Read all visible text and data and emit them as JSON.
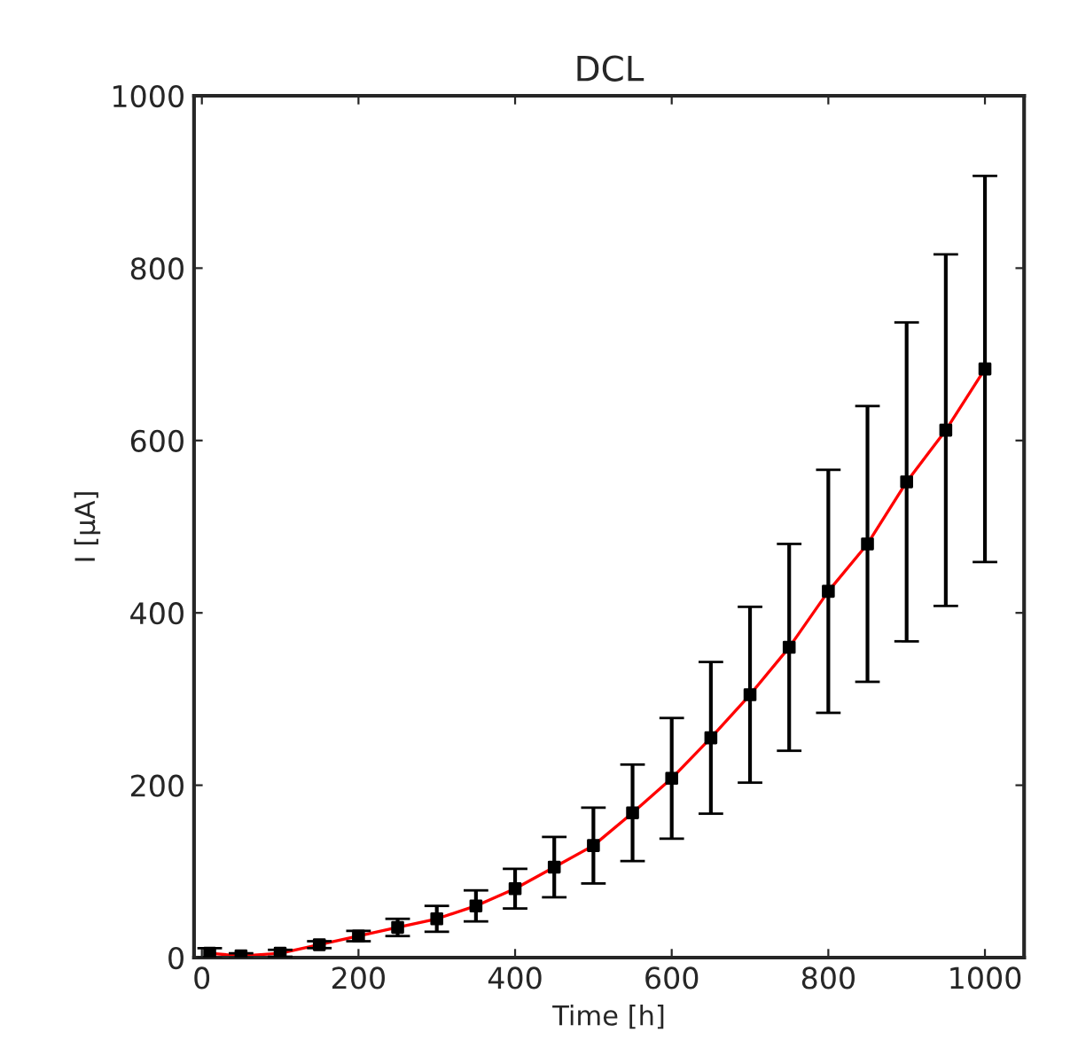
{
  "chart_data": {
    "type": "scatter",
    "title": "DCL",
    "xlabel": "Time [h]",
    "ylabel": "I [µA]",
    "x": [
      10,
      50,
      100,
      150,
      200,
      250,
      300,
      350,
      400,
      450,
      500,
      550,
      600,
      650,
      700,
      750,
      800,
      850,
      900,
      950,
      1000
    ],
    "series": [
      {
        "type": "line",
        "color": "#ff0000",
        "marker": "none",
        "values": [
          5,
          2,
          5,
          15,
          25,
          35,
          45,
          60,
          80,
          105,
          130,
          168,
          208,
          255,
          305,
          360,
          425,
          480,
          552,
          612,
          683
        ]
      },
      {
        "color": "#000000",
        "marker": "square",
        "values": [
          5,
          2,
          5,
          15,
          25,
          35,
          45,
          60,
          80,
          105,
          130,
          168,
          208,
          255,
          305,
          360,
          425,
          480,
          552,
          612,
          683
        ],
        "errors": [
          6,
          3,
          4,
          4,
          6,
          10,
          15,
          18,
          23,
          35,
          44,
          56,
          70,
          88,
          102,
          120,
          141,
          160,
          185,
          204,
          224
        ]
      }
    ],
    "xlim": [
      -10,
      1050
    ],
    "ylim": [
      0,
      1000
    ],
    "xticks": [
      0,
      200,
      400,
      600,
      800,
      1000
    ],
    "yticks": [
      0,
      200,
      400,
      600,
      800,
      1000
    ],
    "grid": false,
    "legend": false
  }
}
